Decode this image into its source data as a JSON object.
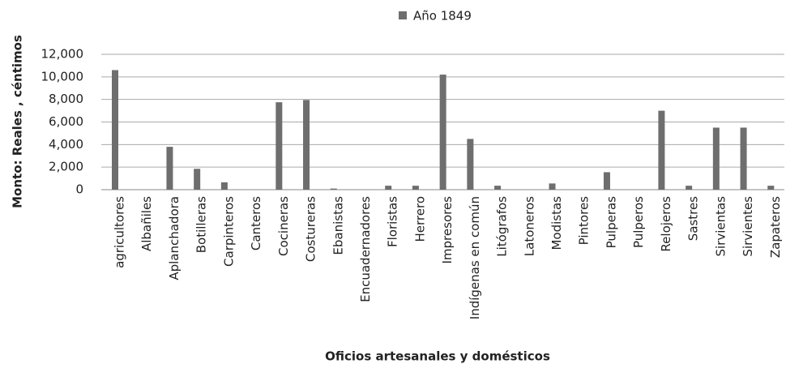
{
  "chart_data": {
    "type": "bar",
    "x_label": "Oficios artesanales y domésticos",
    "y_label": "Monto: Reales , céntimos",
    "categories": [
      "agricultores",
      "Albañiles",
      "Aplanchadora",
      "Botilleras",
      "Carpinteros",
      "Canteros",
      "Cocineras",
      "Costureras",
      "Ebanistas",
      "Encuadernadores",
      "Floristas",
      "Herrero",
      "Impresores",
      "Indígenas en común",
      "Litógrafos",
      "Latoneros",
      "Modistas",
      "Pintores",
      "Pulperas",
      "Pulperos",
      "Relojeros",
      "Sastres",
      "Sirvientas",
      "Sirvientes",
      "Zapateros"
    ],
    "series": [
      {
        "name": "Año 1849",
        "color": "#6e6e6e",
        "values": [
          10600,
          0,
          3800,
          1850,
          650,
          0,
          7750,
          7950,
          100,
          0,
          350,
          350,
          10200,
          4500,
          350,
          0,
          550,
          0,
          1550,
          0,
          7000,
          350,
          5500,
          5500,
          350
        ]
      }
    ],
    "ylim": [
      0,
      12000
    ],
    "yticks": [
      0,
      {
        "value": 2000,
        "label": "2,000"
      },
      {
        "value": 4000,
        "label": "4,000"
      },
      {
        "value": 6000,
        "label": "6,000"
      },
      {
        "value": 8000,
        "label": "8,000"
      },
      {
        "value": 10000,
        "label": "10,000"
      },
      {
        "value": 12000,
        "label": "12,000"
      }
    ],
    "grid": true,
    "legend": "top"
  }
}
